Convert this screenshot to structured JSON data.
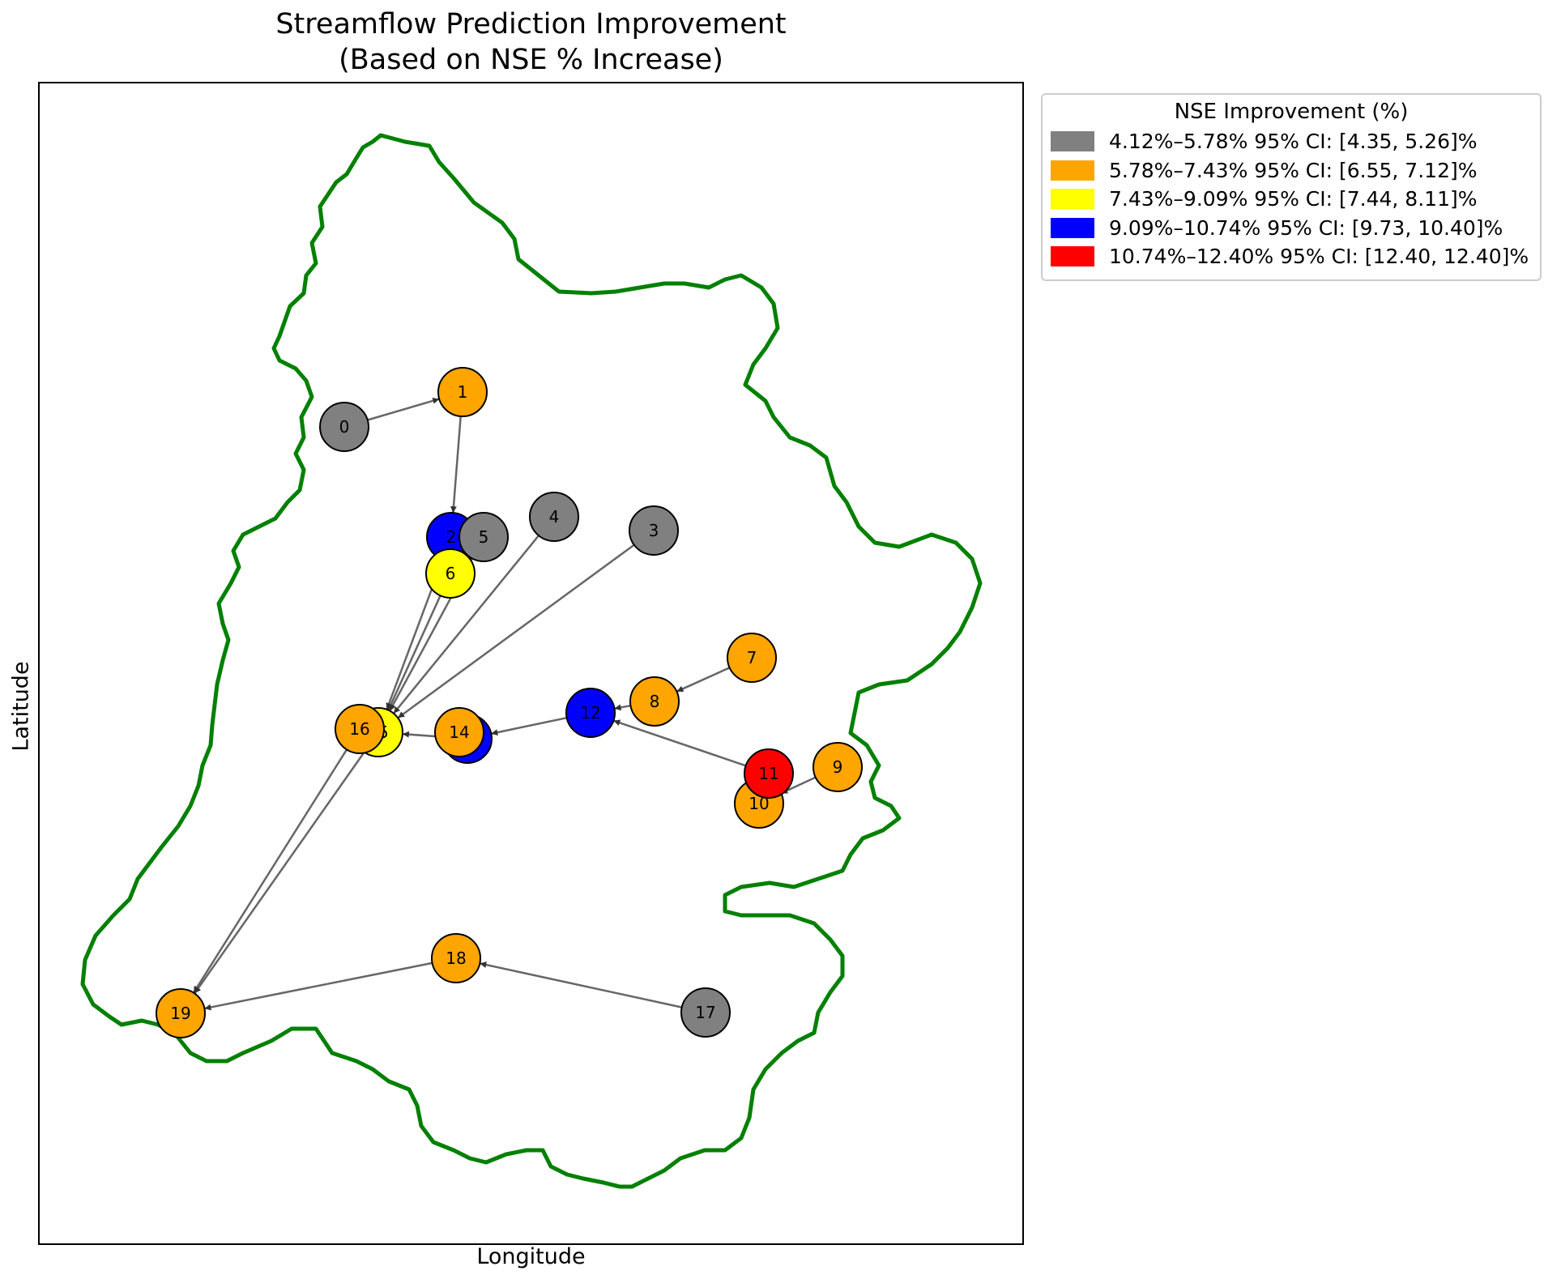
{
  "chart_data": {
    "type": "network-map",
    "title_lines": [
      "Streamflow Prediction Improvement",
      "(Based on NSE % Increase)"
    ],
    "xlabel": "Longitude",
    "ylabel": "Latitude",
    "legend": {
      "title": "NSE Improvement (%)",
      "placement": "outside-top-right",
      "entries": [
        {
          "label": "4.12%–5.78%  95% CI: [4.35, 5.26]%",
          "color": "#808080"
        },
        {
          "label": "5.78%–7.43%  95% CI: [6.55, 7.12]%",
          "color": "#FFA500"
        },
        {
          "label": "7.43%–9.09%  95% CI: [7.44, 8.11]%",
          "color": "#FFFF00"
        },
        {
          "label": "9.09%–10.74%  95% CI: [9.73, 10.40]%",
          "color": "#0000FF"
        },
        {
          "label": "10.74%–12.40%  95% CI: [12.40, 12.40]%",
          "color": "#FF0000"
        }
      ]
    },
    "nodes": [
      {
        "id": "0",
        "class": 0
      },
      {
        "id": "1",
        "class": 1
      },
      {
        "id": "2",
        "class": 3
      },
      {
        "id": "3",
        "class": 0
      },
      {
        "id": "4",
        "class": 0
      },
      {
        "id": "5",
        "class": 0
      },
      {
        "id": "6",
        "class": 2
      },
      {
        "id": "7",
        "class": 1
      },
      {
        "id": "8",
        "class": 1
      },
      {
        "id": "9",
        "class": 1
      },
      {
        "id": "10",
        "class": 1
      },
      {
        "id": "11",
        "class": 4
      },
      {
        "id": "12",
        "class": 3
      },
      {
        "id": "13",
        "class": 3
      },
      {
        "id": "14",
        "class": 1
      },
      {
        "id": "15",
        "class": 2
      },
      {
        "id": "16",
        "class": 1
      },
      {
        "id": "17",
        "class": 0
      },
      {
        "id": "18",
        "class": 1
      },
      {
        "id": "19",
        "class": 1
      }
    ],
    "edges": [
      [
        "0",
        "1"
      ],
      [
        "1",
        "2"
      ],
      [
        "2",
        "15"
      ],
      [
        "6",
        "15"
      ],
      [
        "5",
        "15"
      ],
      [
        "4",
        "15"
      ],
      [
        "3",
        "15"
      ],
      [
        "7",
        "8"
      ],
      [
        "8",
        "12"
      ],
      [
        "11",
        "12"
      ],
      [
        "9",
        "10"
      ],
      [
        "12",
        "13"
      ],
      [
        "13",
        "15"
      ],
      [
        "15",
        "19"
      ],
      [
        "16",
        "19"
      ],
      [
        "17",
        "18"
      ],
      [
        "18",
        "19"
      ]
    ],
    "colors": {
      "boundary": "#008000",
      "edge": "#555555",
      "node_outline": "#000000"
    }
  }
}
